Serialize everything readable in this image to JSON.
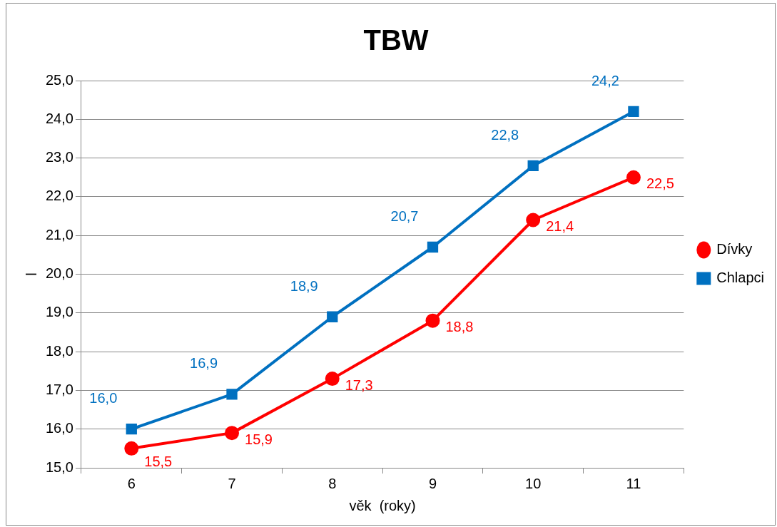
{
  "chart_data": {
    "type": "line",
    "title": "TBW",
    "xlabel": "věk  (roky)",
    "ylabel": "l",
    "categories": [
      "6",
      "7",
      "8",
      "9",
      "10",
      "11"
    ],
    "series": [
      {
        "name": "Dívky",
        "color": "#ff0000",
        "marker": "circle",
        "values": [
          15.5,
          15.9,
          17.3,
          18.8,
          21.4,
          22.5
        ],
        "value_labels": [
          "15,5",
          "15,9",
          "17,3",
          "18,8",
          "21,4",
          "22,5"
        ]
      },
      {
        "name": "Chlapci",
        "color": "#0070c0",
        "marker": "square",
        "values": [
          16.0,
          16.9,
          18.9,
          20.7,
          22.8,
          24.2
        ],
        "value_labels": [
          "16,0",
          "16,9",
          "18,9",
          "20,7",
          "22,8",
          "24,2"
        ]
      }
    ],
    "ylim": [
      15,
      25
    ],
    "yticks": [
      {
        "value": 15,
        "label": "15,0"
      },
      {
        "value": 16,
        "label": "16,0"
      },
      {
        "value": 17,
        "label": "17,0"
      },
      {
        "value": 18,
        "label": "18,0"
      },
      {
        "value": 19,
        "label": "19,0"
      },
      {
        "value": 20,
        "label": "20,0"
      },
      {
        "value": 21,
        "label": "21,0"
      },
      {
        "value": 22,
        "label": "22,0"
      },
      {
        "value": 23,
        "label": "23,0"
      },
      {
        "value": 24,
        "label": "24,0"
      },
      {
        "value": 25,
        "label": "25,0"
      }
    ],
    "grid": "y",
    "legend": "right",
    "line_style": "solid"
  }
}
